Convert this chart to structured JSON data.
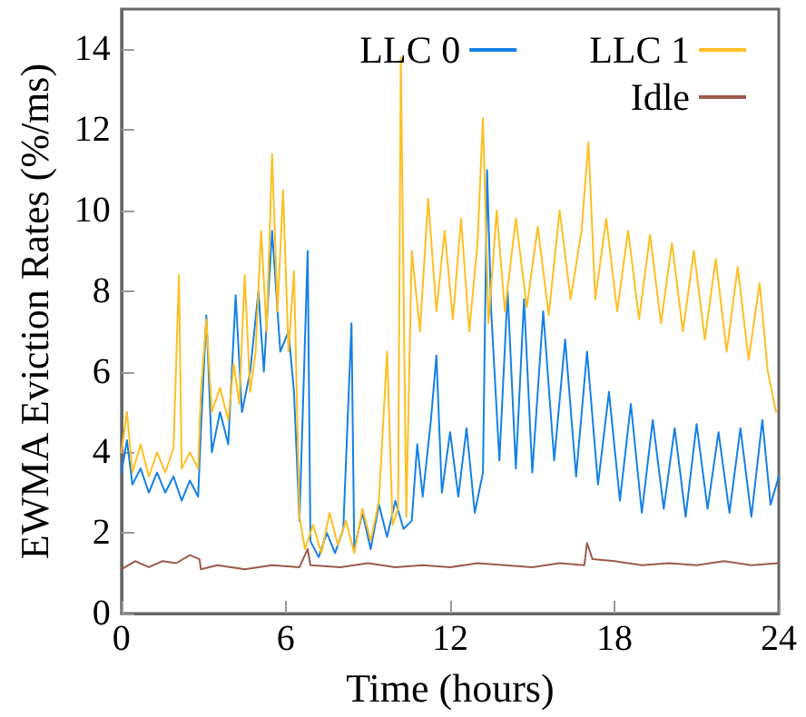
{
  "chart_data": {
    "type": "line",
    "xlabel": "Time (hours)",
    "ylabel": "EWMA Eviction Rates (%/ms)",
    "xlim": [
      0,
      24
    ],
    "xticks": [
      0,
      6,
      12,
      18,
      24
    ],
    "ylim": [
      0,
      15
    ],
    "yticks": [
      0,
      2,
      4,
      6,
      8,
      10,
      12,
      14
    ],
    "grid": false,
    "legend": "top right",
    "marker": "none",
    "line_style": "solid",
    "series": [
      {
        "name": "LLC 0",
        "color": "#1580e6",
        "x": [
          0,
          0.2,
          0.4,
          0.7,
          1.0,
          1.3,
          1.6,
          1.9,
          2.2,
          2.5,
          2.8,
          2.9,
          3.1,
          3.3,
          3.6,
          3.9,
          4.17,
          4.4,
          4.7,
          5.0,
          5.2,
          5.5,
          5.8,
          6.1,
          6.3,
          6.5,
          6.8,
          6.9,
          7.2,
          7.5,
          7.8,
          8.1,
          8.4,
          8.5,
          8.8,
          9.1,
          9.4,
          9.7,
          10.0,
          10.3,
          10.6,
          10.8,
          11.0,
          11.3,
          11.5,
          11.7,
          12.0,
          12.3,
          12.6,
          12.9,
          13.2,
          13.35,
          13.5,
          13.8,
          14.1,
          14.4,
          14.7,
          15.0,
          15.4,
          15.8,
          16.2,
          16.6,
          17.0,
          17.4,
          17.8,
          18.2,
          18.6,
          19.0,
          19.4,
          19.8,
          20.2,
          20.6,
          21.0,
          21.4,
          21.8,
          22.2,
          22.6,
          23.0,
          23.4,
          23.7,
          24.0
        ],
        "values": [
          3.5,
          4.3,
          3.2,
          3.6,
          3.0,
          3.5,
          3.0,
          3.4,
          2.8,
          3.3,
          2.9,
          4.5,
          7.4,
          4.0,
          5.0,
          4.2,
          7.9,
          5.0,
          6.0,
          8.0,
          6.0,
          9.5,
          6.5,
          7.0,
          5.5,
          2.3,
          9.0,
          1.8,
          1.4,
          2.0,
          1.5,
          2.1,
          7.2,
          1.6,
          2.5,
          1.6,
          2.7,
          1.9,
          2.8,
          2.1,
          2.3,
          4.2,
          2.9,
          4.8,
          6.4,
          3.0,
          4.5,
          2.9,
          4.6,
          2.5,
          3.5,
          11.0,
          7.5,
          3.8,
          8.0,
          3.6,
          7.8,
          3.5,
          7.5,
          3.8,
          6.8,
          3.4,
          6.5,
          3.2,
          5.5,
          2.8,
          5.2,
          2.5,
          4.8,
          2.6,
          4.6,
          2.4,
          4.7,
          2.6,
          4.5,
          2.5,
          4.6,
          2.4,
          4.8,
          2.7,
          3.4
        ]
      },
      {
        "name": "LLC 1",
        "color": "#ffbf22",
        "x": [
          0,
          0.2,
          0.4,
          0.7,
          1.0,
          1.3,
          1.6,
          1.9,
          2.1,
          2.2,
          2.5,
          2.8,
          2.9,
          3.1,
          3.3,
          3.6,
          3.9,
          4.1,
          4.3,
          4.5,
          4.7,
          4.9,
          5.1,
          5.3,
          5.5,
          5.7,
          5.9,
          6.1,
          6.3,
          6.5,
          6.7,
          7.0,
          7.3,
          7.6,
          7.9,
          8.2,
          8.5,
          8.8,
          9.1,
          9.4,
          9.7,
          9.9,
          10.1,
          10.2,
          10.4,
          10.6,
          10.9,
          11.2,
          11.5,
          11.8,
          12.1,
          12.4,
          12.7,
          13.0,
          13.2,
          13.4,
          13.7,
          14.0,
          14.4,
          14.8,
          15.2,
          15.6,
          16.0,
          16.4,
          16.8,
          17.05,
          17.3,
          17.7,
          18.1,
          18.5,
          18.9,
          19.3,
          19.7,
          20.1,
          20.5,
          20.9,
          21.3,
          21.7,
          22.1,
          22.5,
          22.9,
          23.3,
          23.6,
          23.9
        ],
        "values": [
          4.0,
          5.0,
          3.5,
          4.2,
          3.4,
          4.0,
          3.5,
          4.1,
          8.4,
          3.6,
          4.0,
          3.6,
          5.5,
          7.3,
          5.0,
          5.6,
          4.8,
          6.2,
          5.2,
          8.4,
          5.5,
          6.5,
          9.5,
          7.0,
          11.4,
          7.5,
          10.5,
          6.5,
          8.5,
          2.4,
          1.6,
          2.2,
          1.5,
          2.5,
          1.7,
          2.3,
          1.5,
          2.6,
          1.8,
          2.8,
          6.5,
          2.2,
          2.6,
          13.8,
          2.4,
          9.0,
          7.0,
          10.3,
          7.5,
          9.5,
          7.3,
          9.8,
          7.0,
          9.2,
          12.3,
          7.2,
          10.0,
          7.5,
          9.8,
          7.6,
          9.6,
          7.4,
          10.0,
          7.8,
          9.5,
          11.7,
          7.8,
          9.8,
          7.5,
          9.5,
          7.3,
          9.4,
          7.2,
          9.2,
          7.0,
          9.0,
          6.8,
          8.8,
          6.5,
          8.6,
          6.3,
          8.2,
          6.0,
          5.0
        ]
      },
      {
        "name": "Idle",
        "color": "#9c5a4c",
        "x": [
          0,
          0.5,
          1.0,
          1.5,
          2.0,
          2.5,
          2.85,
          2.9,
          3.5,
          4.5,
          5.5,
          6.5,
          6.8,
          6.9,
          8,
          9,
          10,
          11,
          12,
          13,
          14,
          15,
          16,
          16.9,
          17.0,
          17.2,
          18,
          19,
          20,
          21,
          22,
          23,
          24
        ],
        "values": [
          1.1,
          1.3,
          1.15,
          1.3,
          1.25,
          1.45,
          1.35,
          1.1,
          1.2,
          1.1,
          1.2,
          1.15,
          1.6,
          1.2,
          1.15,
          1.25,
          1.15,
          1.2,
          1.15,
          1.25,
          1.2,
          1.15,
          1.25,
          1.2,
          1.75,
          1.35,
          1.3,
          1.2,
          1.25,
          1.2,
          1.3,
          1.2,
          1.25
        ]
      }
    ]
  }
}
